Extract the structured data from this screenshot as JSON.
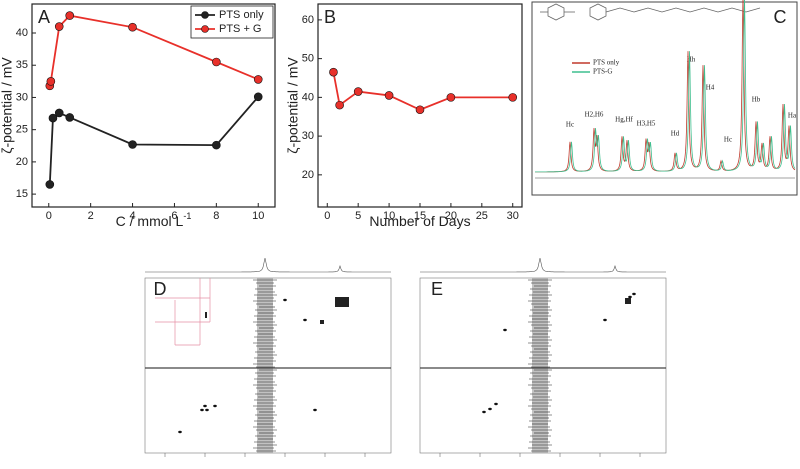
{
  "chart_data": [
    {
      "type": "line",
      "label": "A",
      "xlabel": "C / mmol L",
      "xlabel_sup": "-1",
      "ylabel": "ζ-potential / mV",
      "xlim": [
        -0.8,
        10.8
      ],
      "xticks": [
        0,
        2,
        4,
        6,
        8,
        10
      ],
      "ylim": [
        13,
        44.5
      ],
      "yticks": [
        15,
        20,
        25,
        30,
        35,
        40
      ],
      "legend": "upper right",
      "series": [
        {
          "name": "PTS only",
          "color": "#222222",
          "x": [
            0.05,
            0.2,
            0.5,
            1,
            4,
            8,
            10
          ],
          "values": [
            16.5,
            26.8,
            27.6,
            26.9,
            22.7,
            22.6,
            30.1
          ]
        },
        {
          "name": "PTS + G",
          "color": "#e8302a",
          "x": [
            0.05,
            0.1,
            0.5,
            1,
            4,
            8,
            10
          ],
          "values": [
            31.8,
            32.5,
            41.0,
            42.7,
            40.9,
            35.5,
            32.8
          ]
        }
      ]
    },
    {
      "type": "line",
      "label": "B",
      "xlabel": "Number of Days",
      "ylabel": "ζ-potential / mV",
      "xlim": [
        -1.5,
        31.5
      ],
      "xticks": [
        0,
        5,
        10,
        15,
        20,
        25,
        30
      ],
      "ylim": [
        11.7,
        64.1
      ],
      "yticks": [
        20,
        30,
        40,
        50,
        60
      ],
      "series": [
        {
          "color": "#e8302a",
          "x": [
            1,
            2,
            5,
            10,
            15,
            20,
            30
          ],
          "values": [
            46.5,
            38.0,
            41.5,
            40.5,
            36.8,
            40.0,
            40.0
          ]
        }
      ]
    }
  ],
  "spectrum": {
    "label": "C",
    "legend": [
      "PTS only",
      "PTS-G"
    ],
    "peaks": [
      "Hc",
      "H2,H6",
      "Hg,Hf",
      "H3,H5",
      "Hd",
      "Hh",
      "H4",
      "Hc",
      "Hb",
      "Ha"
    ]
  },
  "noesy": [
    {
      "label": "D"
    },
    {
      "label": "E"
    }
  ]
}
